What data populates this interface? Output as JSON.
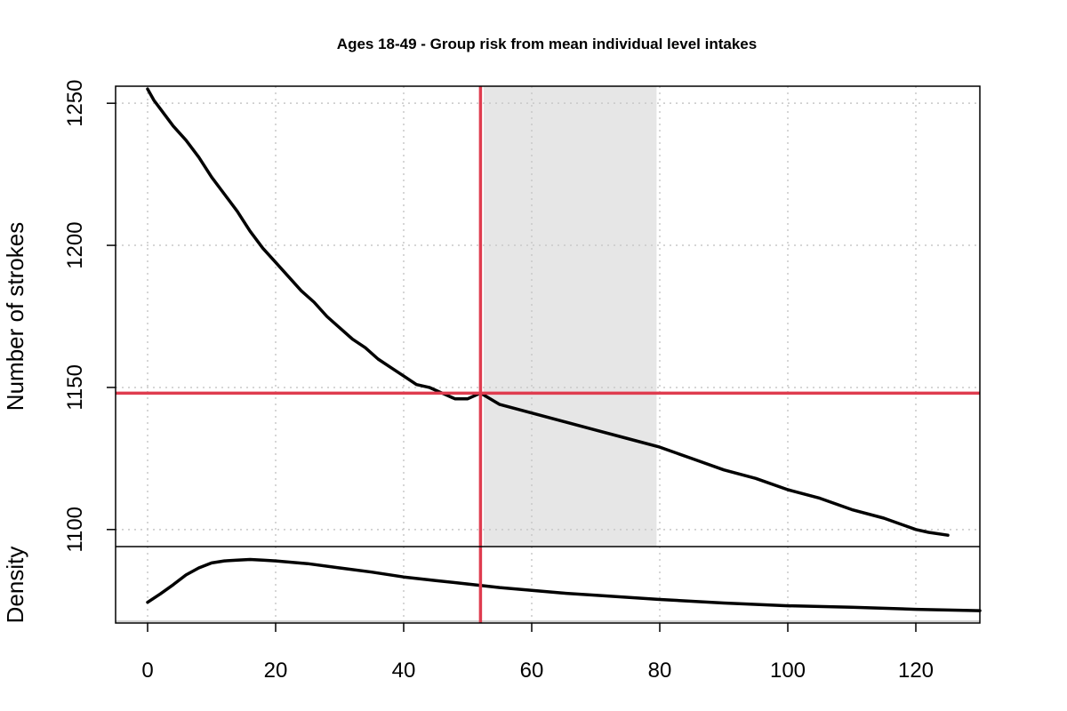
{
  "chart_data": {
    "type": "line",
    "title": "Ages 18-49 - Group risk from mean individual level intakes",
    "xlabel": "",
    "ylabel": "Number of strokes",
    "density_label": "Density",
    "xlim": [
      -5,
      130
    ],
    "ylim": [
      1094,
      1256
    ],
    "xticks": [
      0,
      20,
      40,
      60,
      80,
      100,
      120
    ],
    "yticks": [
      1100,
      1150,
      1200,
      1250
    ],
    "grid": true,
    "shaded_interval": {
      "x_start": 52.5,
      "x_end": 79.5,
      "color": "#e6e6e6"
    },
    "reference_x": 52,
    "reference_y": 1148,
    "reference_color": "#df3c4f",
    "series": [
      {
        "x": [
          0,
          1,
          2,
          4,
          6,
          8,
          10,
          12,
          14,
          16,
          18,
          20,
          22,
          24,
          26,
          28,
          30,
          32,
          34,
          36,
          38,
          40,
          42,
          44,
          46,
          48,
          50,
          52,
          55,
          60,
          65,
          70,
          75,
          80,
          85,
          90,
          95,
          100,
          105,
          110,
          115,
          120,
          122,
          125
        ],
        "values": [
          1255,
          1251,
          1248,
          1242,
          1237,
          1231,
          1224,
          1218,
          1212,
          1205,
          1199,
          1194,
          1189,
          1184,
          1180,
          1175,
          1171,
          1167,
          1164,
          1160,
          1157,
          1154,
          1151,
          1150,
          1148,
          1146,
          1146,
          1148,
          1144,
          1141,
          1138,
          1135,
          1132,
          1129,
          1125,
          1121,
          1118,
          1114,
          1111,
          1107,
          1104,
          1100,
          1099,
          1098
        ]
      }
    ],
    "density": {
      "x": [
        0,
        2,
        4,
        6,
        8,
        10,
        12,
        14,
        16,
        18,
        20,
        25,
        30,
        35,
        40,
        45,
        50,
        55,
        60,
        65,
        70,
        75,
        80,
        90,
        100,
        110,
        120,
        130
      ],
      "values": [
        0.27,
        0.39,
        0.52,
        0.66,
        0.76,
        0.83,
        0.86,
        0.87,
        0.88,
        0.87,
        0.86,
        0.82,
        0.76,
        0.7,
        0.63,
        0.58,
        0.53,
        0.48,
        0.44,
        0.4,
        0.37,
        0.34,
        0.31,
        0.26,
        0.22,
        0.2,
        0.17,
        0.15
      ]
    }
  }
}
